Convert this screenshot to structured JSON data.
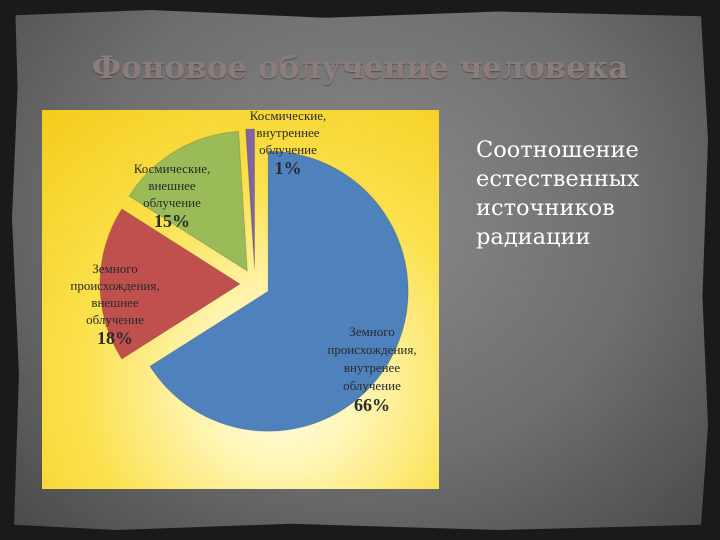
{
  "slide": {
    "title": "Фоновое облучение человека",
    "side_text": [
      "Соотношение",
      "естественных",
      "источников",
      "радиации"
    ]
  },
  "chart_data": {
    "type": "pie",
    "title": "",
    "slices": [
      {
        "label": [
          "Земного",
          "происхождения,",
          "внутренее",
          "облучение"
        ],
        "value": 66,
        "value_text": "66%",
        "color": "#4f81bd"
      },
      {
        "label": [
          "Земного",
          "происхождения,",
          "внешнее",
          "облучение"
        ],
        "value": 18,
        "value_text": "18%",
        "color": "#c0504d"
      },
      {
        "label": [
          "Космические,",
          "внешнее",
          "облучение"
        ],
        "value": 15,
        "value_text": "15%",
        "color": "#9bbb59"
      },
      {
        "label": [
          "Космические,",
          "внутреннее",
          "облучение"
        ],
        "value": 1,
        "value_text": "1%",
        "color": "#8064a2"
      }
    ],
    "legend": "none",
    "background": "yellow radial gradient"
  }
}
